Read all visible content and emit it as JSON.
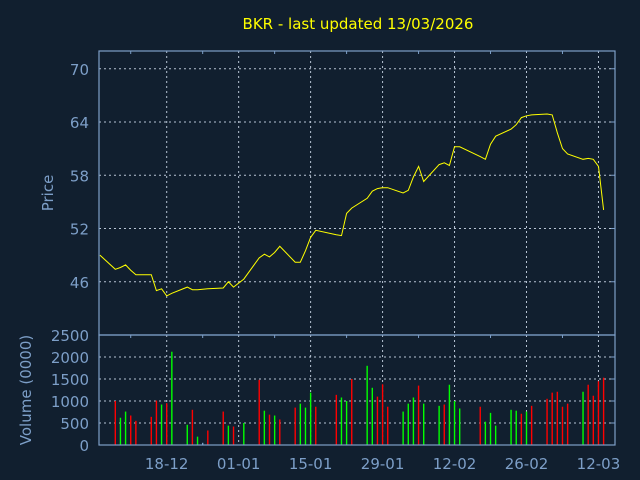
{
  "chart_data": [
    {
      "type": "line",
      "title": "BKR - last updated 13/03/2026",
      "ylabel": "Price",
      "ylim": [
        40,
        72
      ],
      "yticks": [
        "46",
        "52",
        "58",
        "64",
        "70"
      ],
      "xticks": [
        {
          "date": "2025-12-18",
          "label": "18-12"
        },
        {
          "date": "2026-01-01",
          "label": "01-01"
        },
        {
          "date": "2026-01-15",
          "label": "15-01"
        },
        {
          "date": "2026-01-29",
          "label": "29-01"
        },
        {
          "date": "2026-02-12",
          "label": "12-02"
        },
        {
          "date": "2026-02-26",
          "label": "26-02"
        },
        {
          "date": "2026-03-12",
          "label": "12-03"
        }
      ],
      "grid": true,
      "line_color": "#ffff00",
      "x": [
        "2025-12-05",
        "2025-12-08",
        "2025-12-09",
        "2025-12-10",
        "2025-12-11",
        "2025-12-12",
        "2025-12-15",
        "2025-12-16",
        "2025-12-17",
        "2025-12-18",
        "2025-12-19",
        "2025-12-22",
        "2025-12-23",
        "2025-12-24",
        "2025-12-26",
        "2025-12-29",
        "2025-12-30",
        "2025-12-31",
        "2026-01-02",
        "2026-01-05",
        "2026-01-06",
        "2026-01-07",
        "2026-01-08",
        "2026-01-09",
        "2026-01-12",
        "2026-01-13",
        "2026-01-14",
        "2026-01-15",
        "2026-01-16",
        "2026-01-20",
        "2026-01-21",
        "2026-01-22",
        "2026-01-23",
        "2026-01-26",
        "2026-01-27",
        "2026-01-28",
        "2026-01-29",
        "2026-01-30",
        "2026-02-02",
        "2026-02-03",
        "2026-02-04",
        "2026-02-05",
        "2026-02-06",
        "2026-02-09",
        "2026-02-10",
        "2026-02-11",
        "2026-02-12",
        "2026-02-13",
        "2026-02-17",
        "2026-02-18",
        "2026-02-19",
        "2026-02-20",
        "2026-02-23",
        "2026-02-24",
        "2026-02-25",
        "2026-02-26",
        "2026-02-27",
        "2026-03-02",
        "2026-03-03",
        "2026-03-04",
        "2026-03-05",
        "2026-03-06",
        "2026-03-09",
        "2026-03-10",
        "2026-03-11",
        "2026-03-12",
        "2026-03-13"
      ],
      "y": [
        49.0,
        47.4,
        47.6,
        47.9,
        47.3,
        46.8,
        46.8,
        45.0,
        45.2,
        44.4,
        44.7,
        45.4,
        45.1,
        45.1,
        45.2,
        45.3,
        46.0,
        45.4,
        46.3,
        48.7,
        49.1,
        48.8,
        49.3,
        50.0,
        48.2,
        48.2,
        49.5,
        51.0,
        51.8,
        51.3,
        51.2,
        53.7,
        54.3,
        55.4,
        56.2,
        56.5,
        56.6,
        56.6,
        56.0,
        56.3,
        57.8,
        59.0,
        57.3,
        59.2,
        59.4,
        59.1,
        61.2,
        61.2,
        60.1,
        59.8,
        61.5,
        62.4,
        63.2,
        63.7,
        64.5,
        64.7,
        64.8,
        64.9,
        64.8,
        62.8,
        61.0,
        60.4,
        59.8,
        59.9,
        59.8,
        59.0,
        54.1
      ]
    },
    {
      "type": "bar",
      "ylabel": "Volume (0000)",
      "ylim": [
        0,
        2500
      ],
      "yticks": [
        "0",
        "500",
        "1000",
        "1500",
        "2000",
        "2500"
      ],
      "grid": true,
      "colors": {
        "up": "#00ff00",
        "down": "#ff0000",
        "flat": "#7d9fc8"
      },
      "bars": [
        {
          "date": "2025-12-08",
          "value": 1000,
          "dir": "down"
        },
        {
          "date": "2025-12-09",
          "value": 620,
          "dir": "up"
        },
        {
          "date": "2025-12-10",
          "value": 760,
          "dir": "up"
        },
        {
          "date": "2025-12-11",
          "value": 670,
          "dir": "down"
        },
        {
          "date": "2025-12-12",
          "value": 550,
          "dir": "down"
        },
        {
          "date": "2025-12-15",
          "value": 640,
          "dir": "down"
        },
        {
          "date": "2025-12-16",
          "value": 1010,
          "dir": "down"
        },
        {
          "date": "2025-12-17",
          "value": 920,
          "dir": "up"
        },
        {
          "date": "2025-12-18",
          "value": 950,
          "dir": "down"
        },
        {
          "date": "2025-12-19",
          "value": 2120,
          "dir": "up"
        },
        {
          "date": "2025-12-22",
          "value": 460,
          "dir": "up"
        },
        {
          "date": "2025-12-23",
          "value": 800,
          "dir": "down"
        },
        {
          "date": "2025-12-24",
          "value": 190,
          "dir": "up"
        },
        {
          "date": "2025-12-25",
          "value": 50,
          "dir": "flat"
        },
        {
          "date": "2025-12-26",
          "value": 330,
          "dir": "down"
        },
        {
          "date": "2025-12-29",
          "value": 760,
          "dir": "down"
        },
        {
          "date": "2025-12-30",
          "value": 440,
          "dir": "up"
        },
        {
          "date": "2025-12-31",
          "value": 420,
          "dir": "down"
        },
        {
          "date": "2026-01-02",
          "value": 500,
          "dir": "up"
        },
        {
          "date": "2026-01-05",
          "value": 1480,
          "dir": "down"
        },
        {
          "date": "2026-01-06",
          "value": 780,
          "dir": "up"
        },
        {
          "date": "2026-01-07",
          "value": 690,
          "dir": "down"
        },
        {
          "date": "2026-01-08",
          "value": 670,
          "dir": "up"
        },
        {
          "date": "2026-01-09",
          "value": 580,
          "dir": "down"
        },
        {
          "date": "2026-01-12",
          "value": 850,
          "dir": "down"
        },
        {
          "date": "2026-01-13",
          "value": 940,
          "dir": "up"
        },
        {
          "date": "2026-01-14",
          "value": 850,
          "dir": "up"
        },
        {
          "date": "2026-01-15",
          "value": 1190,
          "dir": "up"
        },
        {
          "date": "2026-01-16",
          "value": 870,
          "dir": "down"
        },
        {
          "date": "2026-01-20",
          "value": 1140,
          "dir": "down"
        },
        {
          "date": "2026-01-21",
          "value": 1080,
          "dir": "up"
        },
        {
          "date": "2026-01-22",
          "value": 1000,
          "dir": "up"
        },
        {
          "date": "2026-01-23",
          "value": 1500,
          "dir": "down"
        },
        {
          "date": "2026-01-26",
          "value": 1800,
          "dir": "up"
        },
        {
          "date": "2026-01-27",
          "value": 1300,
          "dir": "up"
        },
        {
          "date": "2026-01-28",
          "value": 1100,
          "dir": "down"
        },
        {
          "date": "2026-01-29",
          "value": 1380,
          "dir": "down"
        },
        {
          "date": "2026-01-30",
          "value": 870,
          "dir": "down"
        },
        {
          "date": "2026-02-02",
          "value": 760,
          "dir": "up"
        },
        {
          "date": "2026-02-03",
          "value": 940,
          "dir": "up"
        },
        {
          "date": "2026-02-04",
          "value": 1080,
          "dir": "up"
        },
        {
          "date": "2026-02-05",
          "value": 1350,
          "dir": "down"
        },
        {
          "date": "2026-02-06",
          "value": 940,
          "dir": "up"
        },
        {
          "date": "2026-02-09",
          "value": 890,
          "dir": "up"
        },
        {
          "date": "2026-02-10",
          "value": 920,
          "dir": "down"
        },
        {
          "date": "2026-02-11",
          "value": 1370,
          "dir": "up"
        },
        {
          "date": "2026-02-12",
          "value": 1000,
          "dir": "up"
        },
        {
          "date": "2026-02-13",
          "value": 830,
          "dir": "up"
        },
        {
          "date": "2026-02-17",
          "value": 870,
          "dir": "down"
        },
        {
          "date": "2026-02-18",
          "value": 530,
          "dir": "up"
        },
        {
          "date": "2026-02-19",
          "value": 730,
          "dir": "up"
        },
        {
          "date": "2026-02-20",
          "value": 440,
          "dir": "up"
        },
        {
          "date": "2026-02-23",
          "value": 800,
          "dir": "up"
        },
        {
          "date": "2026-02-24",
          "value": 780,
          "dir": "up"
        },
        {
          "date": "2026-02-25",
          "value": 710,
          "dir": "down"
        },
        {
          "date": "2026-02-26",
          "value": 760,
          "dir": "up"
        },
        {
          "date": "2026-02-27",
          "value": 890,
          "dir": "down"
        },
        {
          "date": "2026-03-02",
          "value": 1050,
          "dir": "down"
        },
        {
          "date": "2026-03-03",
          "value": 1190,
          "dir": "down"
        },
        {
          "date": "2026-03-04",
          "value": 1210,
          "dir": "down"
        },
        {
          "date": "2026-03-05",
          "value": 870,
          "dir": "down"
        },
        {
          "date": "2026-03-06",
          "value": 940,
          "dir": "down"
        },
        {
          "date": "2026-03-09",
          "value": 1210,
          "dir": "up"
        },
        {
          "date": "2026-03-10",
          "value": 1370,
          "dir": "down"
        },
        {
          "date": "2026-03-11",
          "value": 1120,
          "dir": "down"
        },
        {
          "date": "2026-03-12",
          "value": 1450,
          "dir": "down"
        },
        {
          "date": "2026-03-13",
          "value": 1530,
          "dir": "down"
        }
      ]
    }
  ]
}
